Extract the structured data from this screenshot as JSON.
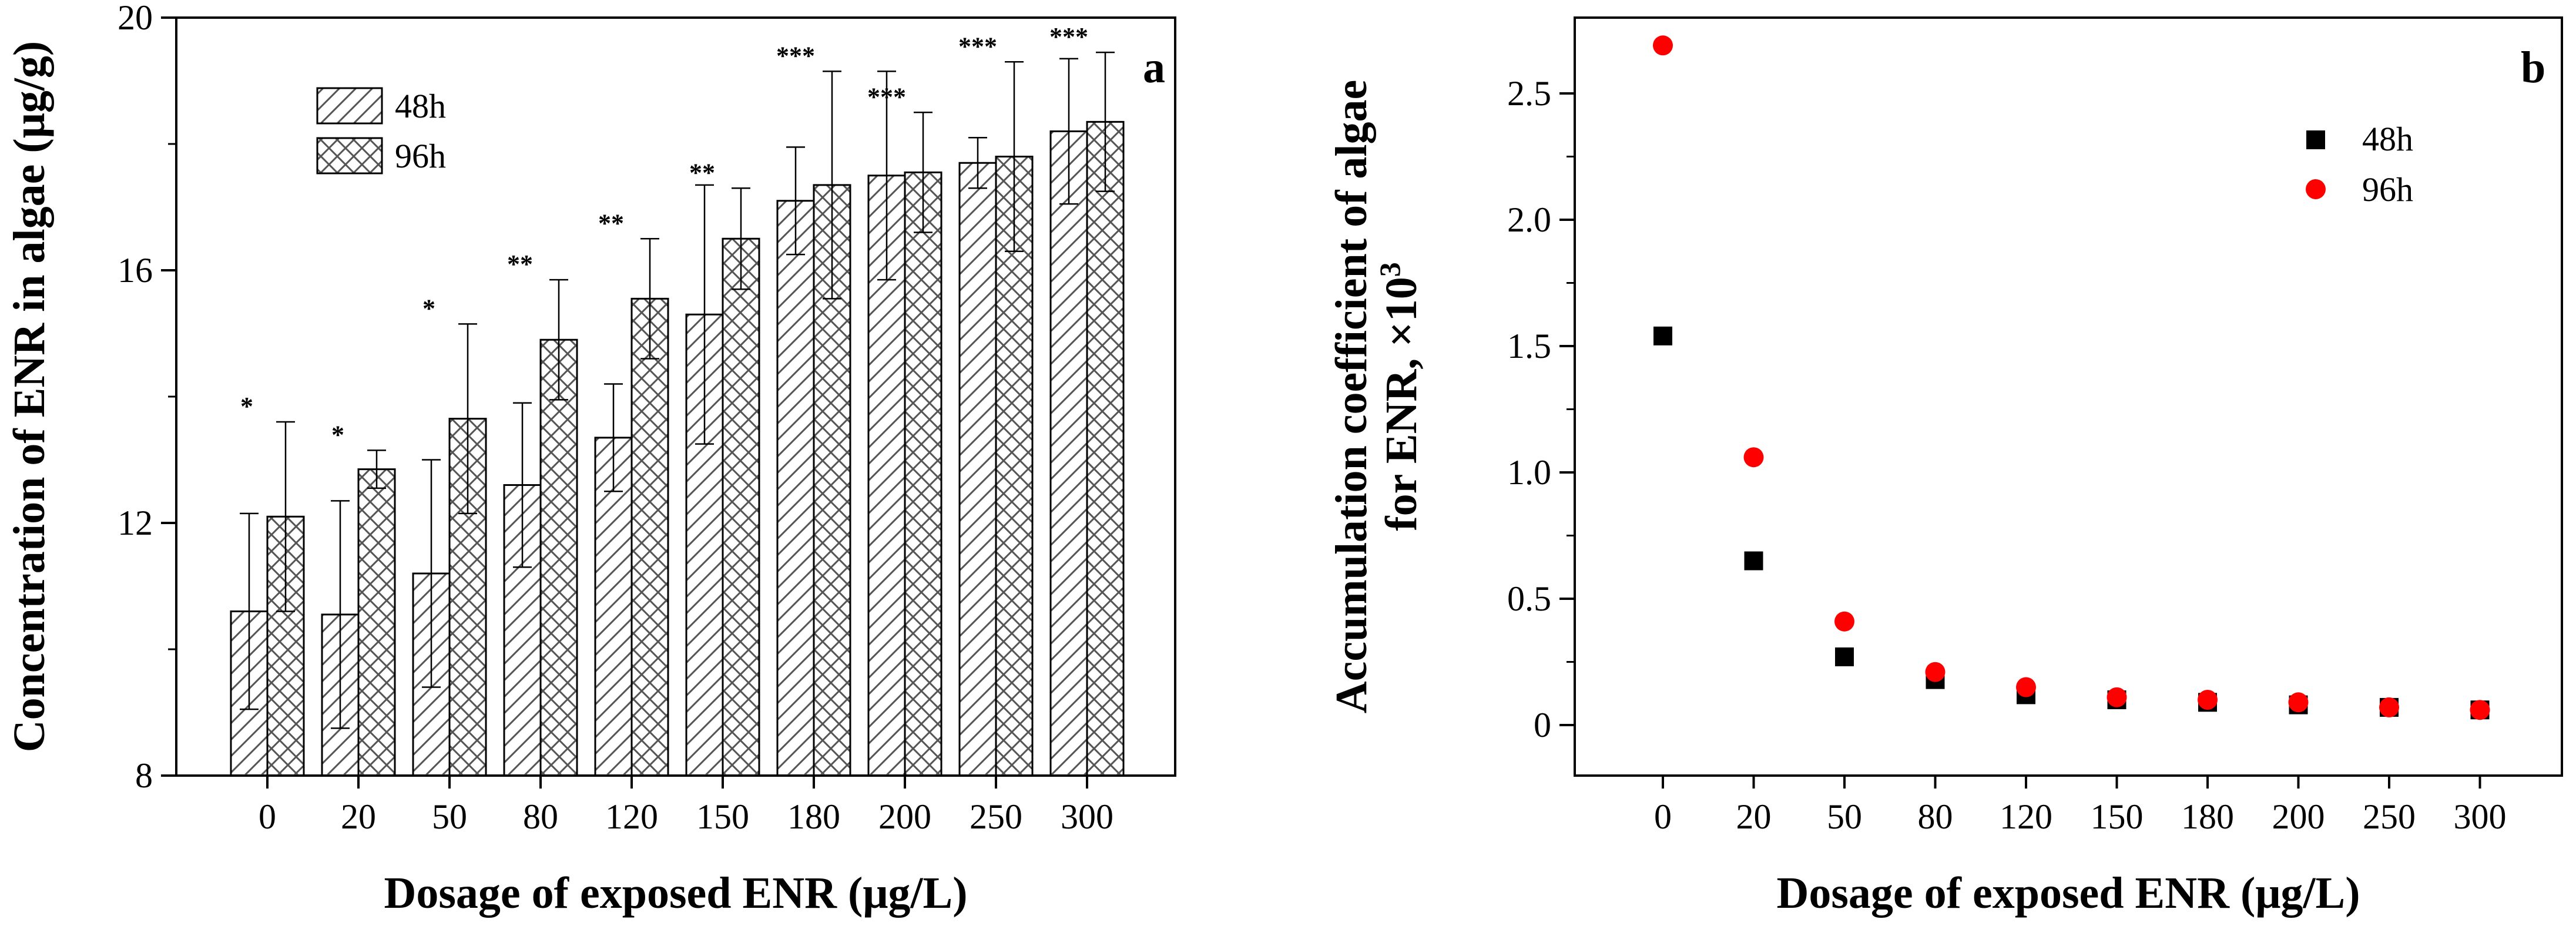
{
  "colors": {
    "axis": "#000000",
    "bar_fill": "#ffffff",
    "hatch": "#555555",
    "square_marker": "#000000",
    "circle_marker": "#ff0000"
  },
  "chart_data": [
    {
      "type": "bar",
      "panel_label": "a",
      "title": "",
      "xlabel": "Dosage of exposed ENR (μg/L)",
      "ylabel": "Concentration of ENR in algae (μg/g)",
      "categories": [
        "0",
        "20",
        "50",
        "80",
        "120",
        "150",
        "180",
        "200",
        "250",
        "300"
      ],
      "ylim": [
        8,
        20
      ],
      "yticks": [
        8,
        12,
        16,
        20
      ],
      "ytick_labels": [
        "8",
        "12",
        "16",
        "20"
      ],
      "legend_position": "top-left",
      "series": [
        {
          "name": "48h",
          "pattern": "diagonal-hatch",
          "values": [
            10.6,
            10.55,
            11.2,
            12.6,
            13.35,
            15.3,
            17.1,
            17.5,
            17.7,
            18.2
          ],
          "errors": [
            1.55,
            1.8,
            1.8,
            1.3,
            0.85,
            2.05,
            0.85,
            1.65,
            0.4,
            1.15
          ]
        },
        {
          "name": "96h",
          "pattern": "cross-hatch",
          "values": [
            12.1,
            12.85,
            13.65,
            14.9,
            15.55,
            16.5,
            17.35,
            17.55,
            17.8,
            18.35
          ],
          "errors": [
            1.5,
            0.3,
            1.5,
            0.95,
            0.95,
            0.8,
            1.8,
            0.95,
            1.5,
            1.1
          ]
        }
      ],
      "significance": [
        "*",
        "*",
        "*",
        "**",
        "**",
        "**",
        "***",
        "***",
        "***",
        "***"
      ]
    },
    {
      "type": "scatter",
      "panel_label": "b",
      "title": "",
      "xlabel": "Dosage of exposed ENR (μg/L)",
      "ylabel": "Accumulation coefficient of algae",
      "ylabel_line2": "for ENR, ×10",
      "ylabel_superscript": "3",
      "categories": [
        "0",
        "20",
        "50",
        "80",
        "120",
        "150",
        "180",
        "200",
        "250",
        "300"
      ],
      "ylim": [
        -0.2,
        2.8
      ],
      "yticks": [
        0,
        0.5,
        1.0,
        1.5,
        2.0,
        2.5
      ],
      "ytick_labels": [
        "0",
        "0.5",
        "1.0",
        "1.5",
        "2.0",
        "2.5"
      ],
      "legend_position": "top-right",
      "series": [
        {
          "name": "48h",
          "marker": "square",
          "values": [
            1.54,
            0.65,
            0.27,
            0.18,
            0.12,
            0.1,
            0.09,
            0.08,
            0.07,
            0.06
          ]
        },
        {
          "name": "96h",
          "marker": "circle",
          "values": [
            2.69,
            1.06,
            0.41,
            0.21,
            0.15,
            0.11,
            0.1,
            0.09,
            0.07,
            0.06
          ]
        }
      ]
    }
  ]
}
